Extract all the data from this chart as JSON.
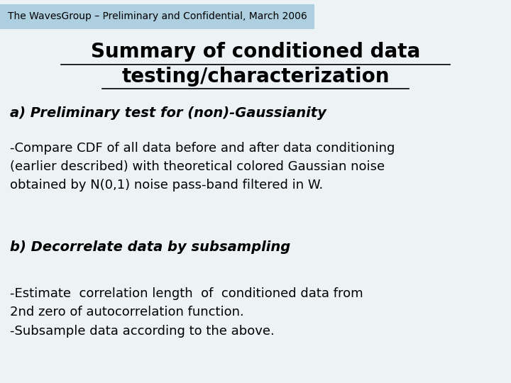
{
  "header_text": "The WavesGroup – Preliminary and Confidential, March 2006",
  "header_bg": "#aecfdf",
  "header_fontsize": 10,
  "title_line1": "Summary of conditioned data",
  "title_line2": "testing/characterization",
  "title_fontsize": 20,
  "section_a_label": "a) Preliminary test for (non)-Gaussianity",
  "section_a_fontsize": 14,
  "body_a_text": "-Compare CDF of all data before and after data conditioning\n(earlier described) with theoretical colored Gaussian noise\nobtained by N(0,1) noise pass-band filtered in W.",
  "body_a_fontsize": 13,
  "section_b_label": "b) Decorrelate data by subsampling",
  "section_b_fontsize": 14,
  "body_b_text": "-Estimate  correlation length  of  conditioned data from\n2nd zero of autocorrelation function.\n-Subsample data according to the above.",
  "body_b_fontsize": 13,
  "bg_color": "#edf2f5",
  "text_color": "#000000"
}
